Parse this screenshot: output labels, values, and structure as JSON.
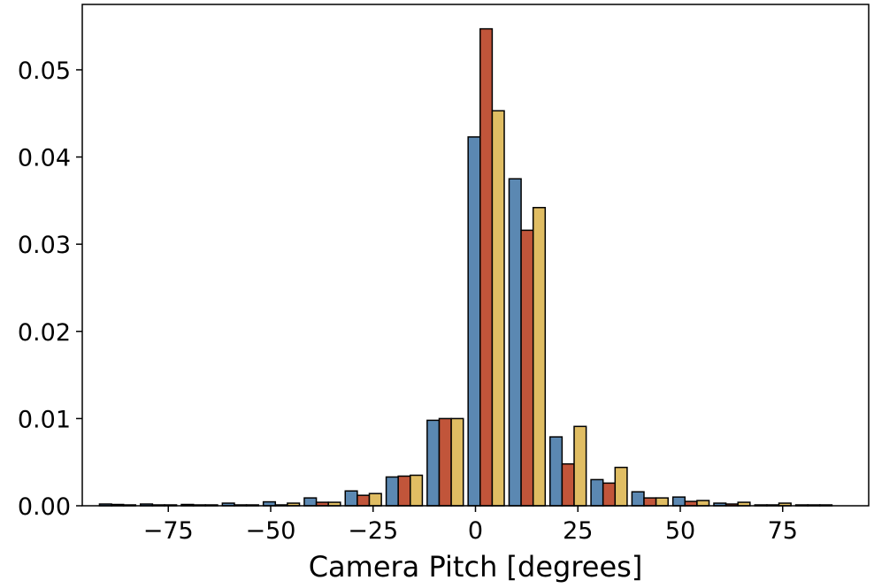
{
  "chart_data": {
    "type": "bar",
    "xlabel": "Camera Pitch [degrees]",
    "ylabel": "",
    "xlim": [
      -96,
      96
    ],
    "ylim": [
      0,
      0.0575
    ],
    "xticks": [
      -75,
      -50,
      -25,
      0,
      25,
      50,
      75
    ],
    "xtick_labels": [
      "−75",
      "−50",
      "−25",
      "0",
      "25",
      "50",
      "75"
    ],
    "yticks": [
      0,
      0.01,
      0.02,
      0.03,
      0.04,
      0.05
    ],
    "ytick_labels": [
      "0.00",
      "0.01",
      "0.02",
      "0.03",
      "0.04",
      "0.05"
    ],
    "grid": false,
    "bin_centers": [
      -87.5,
      -77.5,
      -67.5,
      -57.5,
      -47.5,
      -37.5,
      -27.5,
      -17.5,
      -7.5,
      2.5,
      12.5,
      22.5,
      32.5,
      42.5,
      52.5,
      62.5,
      72.5,
      82.5
    ],
    "series": [
      {
        "color": "#5b88b2",
        "values": [
          0.0002,
          0.0002,
          0.00015,
          0.0003,
          0.00045,
          0.0009,
          0.0017,
          0.0033,
          0.0098,
          0.0423,
          0.0375,
          0.0079,
          0.003,
          0.0016,
          0.001,
          0.0003,
          0.0001,
          0.0001
        ]
      },
      {
        "color": "#c1553a",
        "values": [
          0.00015,
          0.0001,
          0.0001,
          0.0001,
          0.0001,
          0.0004,
          0.0012,
          0.0034,
          0.01,
          0.0547,
          0.0316,
          0.0048,
          0.0026,
          0.0009,
          0.0005,
          0.0002,
          0.0001,
          0.0001
        ]
      },
      {
        "color": "#e0bd63",
        "values": [
          0.0001,
          0.0001,
          0.0001,
          0.0001,
          0.0003,
          0.0004,
          0.0014,
          0.0035,
          0.01,
          0.0453,
          0.0342,
          0.0091,
          0.0044,
          0.0009,
          0.0006,
          0.0004,
          0.0003,
          0.0001
        ]
      }
    ]
  }
}
